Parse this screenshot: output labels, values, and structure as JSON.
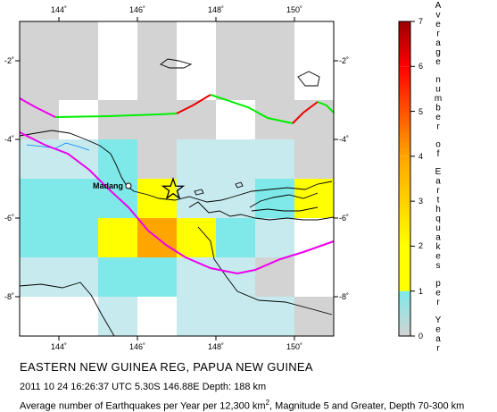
{
  "map": {
    "lon_labels": [
      "144˚",
      "146˚",
      "148˚",
      "150˚"
    ],
    "lat_labels": [
      "-2˚",
      "-4˚",
      "-6˚",
      "-8˚"
    ],
    "city": "Madang",
    "epicenter_symbol": "star"
  },
  "caption": {
    "region": "EASTERN NEW GUINEA REG, PAPUA NEW GUINEA",
    "event": "2011 10 24 16:26:37 UTC 5.30S 146.88E Depth: 188 km",
    "desc_pre": "Average number of Earthquakes per Year per 12,300 km",
    "desc_sup": "2",
    "desc_post": ", Magnitude 5 and Greater, Depth 70-300 km"
  },
  "colorbar": {
    "labels": [
      "0",
      "1",
      "2",
      "3",
      "4",
      "5",
      "6",
      "7"
    ],
    "title": "Average number of Earthquakes per Year",
    "colors": {
      "zero": "#d3d3d3",
      "low": "#c6eaee",
      "mid": "#7fe8e8",
      "yellow": "#ffff00",
      "orange": "#ffa500",
      "red": "#ff0000",
      "dark_red": "#9b0000"
    }
  },
  "legend_lines": {
    "plate_boundary_colors": [
      "#00ee00",
      "#ee0000",
      "#ee00ee"
    ]
  }
}
